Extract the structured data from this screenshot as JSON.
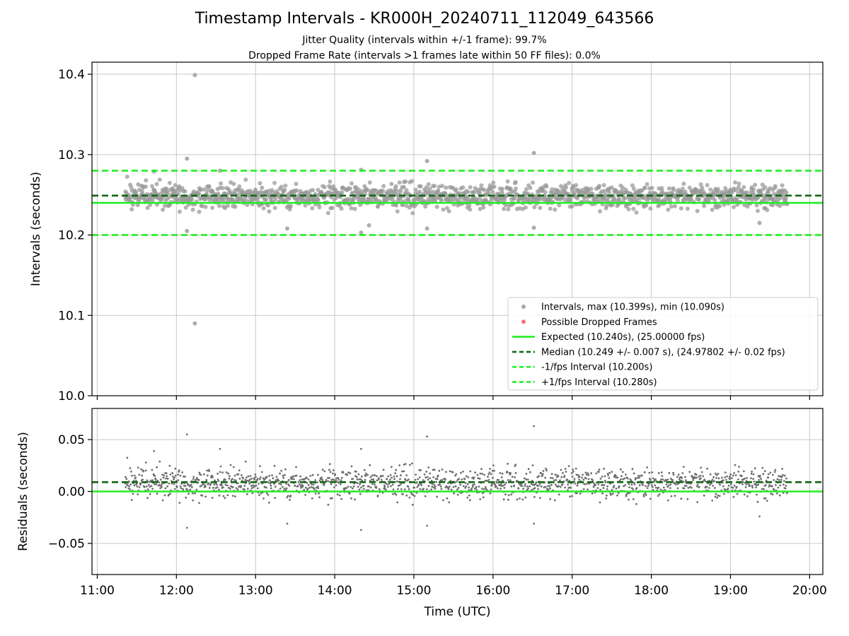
{
  "figure": {
    "title": "Timestamp Intervals - KR000H_20240711_112049_643566",
    "subtitle_1": "Jitter Quality (intervals within +/-1 frame): 99.7%",
    "subtitle_2": "Dropped Frame Rate (intervals >1 frames late within 50 FF files): 0.0%"
  },
  "colors": {
    "points": "#999999",
    "residual_points": "#6e6e6e",
    "dropped": "#f05a5a",
    "expected": "#22ee22",
    "median": "#116611",
    "bounds": "#22ee22",
    "grid": "#c8c8c8",
    "axis": "#000000"
  },
  "chart_data": [
    {
      "type": "scatter",
      "panel": "top",
      "xlabel": "",
      "ylabel": "Intervals (seconds)",
      "xlim": [
        "10:56",
        "20:10"
      ],
      "ylim": [
        10.0,
        10.415
      ],
      "x_ticks": [
        "11:00",
        "12:00",
        "13:00",
        "14:00",
        "15:00",
        "16:00",
        "17:00",
        "18:00",
        "19:00",
        "20:00"
      ],
      "y_ticks": [
        10.0,
        10.1,
        10.2,
        10.3,
        10.4
      ],
      "y_tick_labels": [
        "10.0",
        "10.1",
        "10.2",
        "10.3",
        "10.4"
      ],
      "grid": true,
      "legend_position": "lower-right",
      "series": [
        {
          "name": "Intervals, max (10.399s), min (10.090s)",
          "kind": "points",
          "x_range": [
            "11:21",
            "19:43"
          ],
          "count": 1500,
          "center": 10.248,
          "spread": 0.007,
          "outliers": [
            [
              "12:14",
              10.399
            ],
            [
              "12:14",
              10.09
            ],
            [
              "12:08",
              10.295
            ],
            [
              "12:08",
              10.205
            ],
            [
              "16:31",
              10.302
            ],
            [
              "15:10",
              10.292
            ],
            [
              "14:20",
              10.281
            ],
            [
              "14:20",
              10.203
            ],
            [
              "15:10",
              10.208
            ],
            [
              "16:31",
              10.209
            ],
            [
              "13:24",
              10.208
            ],
            [
              "12:33",
              10.28
            ],
            [
              "19:22",
              10.215
            ],
            [
              "11:43",
              10.279
            ],
            [
              "14:26",
              10.212
            ]
          ]
        },
        {
          "name": "Possible Dropped Frames",
          "kind": "points",
          "values": []
        },
        {
          "name": "Expected (10.240s), (25.00000 fps)",
          "kind": "hline",
          "y": 10.24
        },
        {
          "name": "Median (10.249 +/- 0.007 s), (24.97802 +/- 0.02 fps)",
          "kind": "hline",
          "y": 10.249
        },
        {
          "name": "-1/fps Interval (10.200s)",
          "kind": "hline",
          "y": 10.2
        },
        {
          "name": "+1/fps Interval (10.280s)",
          "kind": "hline",
          "y": 10.28
        }
      ]
    },
    {
      "type": "scatter",
      "panel": "bottom",
      "xlabel": "Time (UTC)",
      "ylabel": "Residuals (seconds)",
      "xlim": [
        "10:56",
        "20:10"
      ],
      "ylim": [
        -0.08,
        0.08
      ],
      "x_ticks": [
        "11:00",
        "12:00",
        "13:00",
        "14:00",
        "15:00",
        "16:00",
        "17:00",
        "18:00",
        "19:00",
        "20:00"
      ],
      "y_ticks": [
        -0.05,
        0.0,
        0.05
      ],
      "y_tick_labels": [
        "−0.05",
        "0.00",
        "0.05"
      ],
      "grid": true,
      "series": [
        {
          "kind": "points",
          "x_range": [
            "11:21",
            "19:43"
          ],
          "count": 1500,
          "center": 0.008,
          "spread": 0.007,
          "outliers": [
            [
              "12:08",
              0.055
            ],
            [
              "12:08",
              -0.035
            ],
            [
              "15:10",
              0.053
            ],
            [
              "15:10",
              -0.033
            ],
            [
              "16:31",
              0.063
            ],
            [
              "16:31",
              -0.031
            ],
            [
              "14:20",
              0.041
            ],
            [
              "14:20",
              -0.037
            ],
            [
              "13:24",
              -0.031
            ],
            [
              "12:33",
              0.041
            ],
            [
              "19:22",
              -0.024
            ],
            [
              "11:43",
              0.039
            ]
          ]
        },
        {
          "kind": "hline",
          "y": 0.0
        },
        {
          "kind": "hline",
          "y": 0.009
        }
      ]
    }
  ]
}
